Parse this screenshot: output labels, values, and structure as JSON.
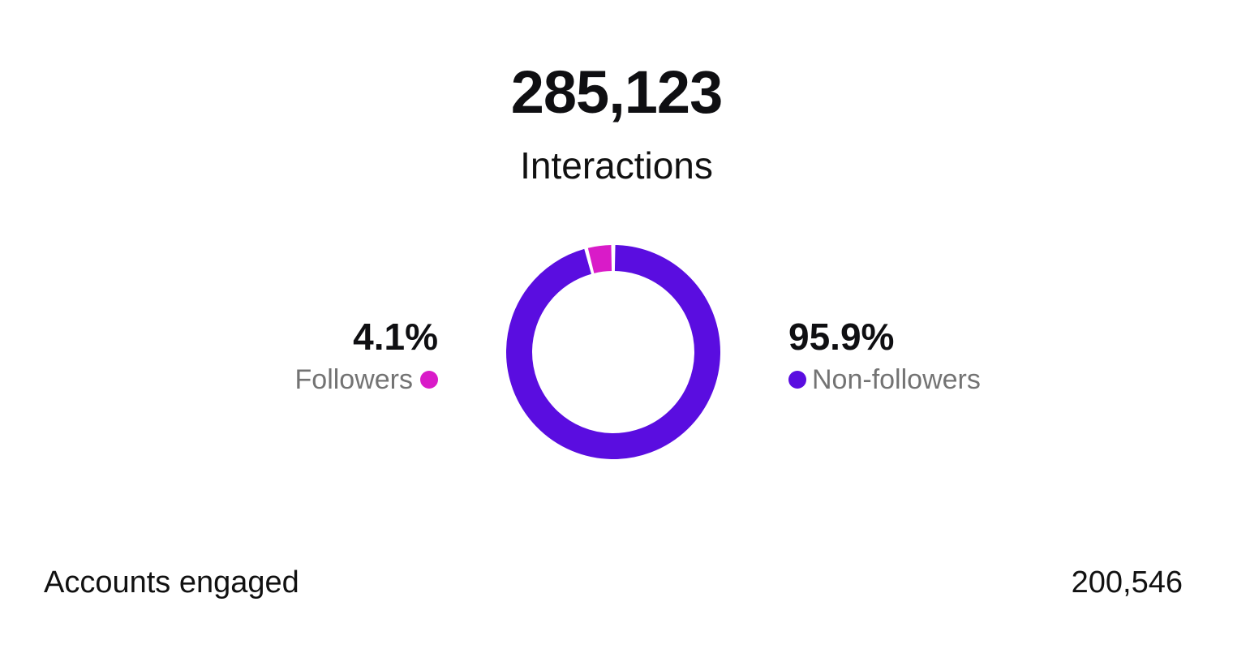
{
  "summary": {
    "total": "285,123",
    "label": "Interactions"
  },
  "chart_data": {
    "type": "pie",
    "style": "donut",
    "categories": [
      "Followers",
      "Non-followers"
    ],
    "values": [
      4.1,
      95.9
    ],
    "value_labels": [
      "4.1%",
      "95.9%"
    ],
    "colors": [
      "#d91bc8",
      "#5a0de0"
    ],
    "legend": [
      "left",
      "right"
    ]
  },
  "breakdown": {
    "followers": {
      "percent": "4.1%",
      "label": "Followers",
      "color": "#d91bc8"
    },
    "non_followers": {
      "percent": "95.9%",
      "label": "Non-followers",
      "color": "#5a0de0"
    }
  },
  "accounts_engaged": {
    "label": "Accounts engaged",
    "value": "200,546"
  }
}
